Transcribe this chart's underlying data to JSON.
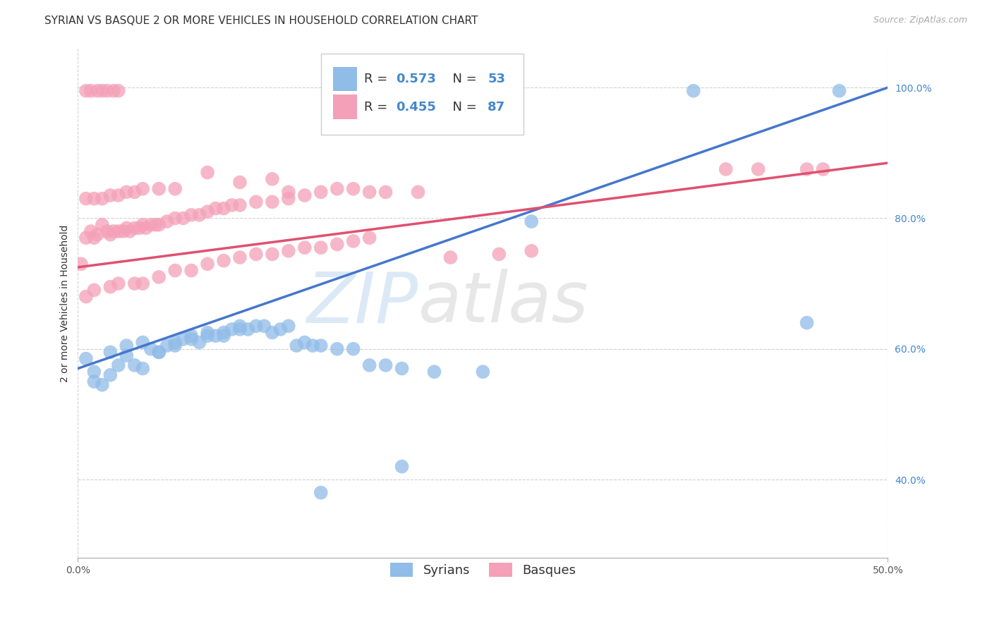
{
  "title": "SYRIAN VS BASQUE 2 OR MORE VEHICLES IN HOUSEHOLD CORRELATION CHART",
  "source": "Source: ZipAtlas.com",
  "ylabel": "2 or more Vehicles in Household",
  "xmin": 0.0,
  "xmax": 0.5,
  "ymin": 0.28,
  "ymax": 1.06,
  "x_ticks": [
    0.0,
    0.5
  ],
  "x_tick_labels": [
    "0.0%",
    "50.0%"
  ],
  "y_ticks": [
    0.4,
    0.6,
    0.8,
    1.0
  ],
  "y_tick_labels": [
    "40.0%",
    "60.0%",
    "80.0%",
    "100.0%"
  ],
  "syrian_R": 0.573,
  "syrian_N": 53,
  "basque_R": 0.455,
  "basque_N": 87,
  "syrian_color": "#90bce8",
  "basque_color": "#f4a0b8",
  "syrian_line_color": "#4477cc",
  "basque_line_color": "#e05070",
  "watermark_zip": "ZIP",
  "watermark_atlas": "atlas",
  "title_fontsize": 11,
  "label_fontsize": 10,
  "tick_fontsize": 10,
  "legend_fontsize": 13
}
